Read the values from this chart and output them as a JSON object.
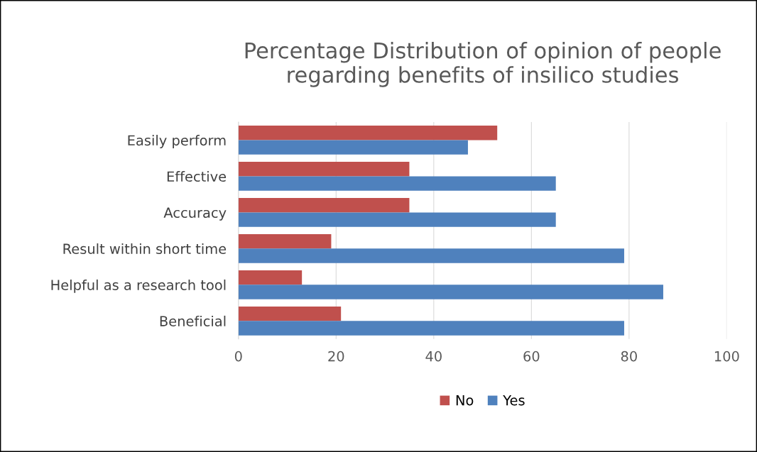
{
  "chart_data": {
    "type": "bar",
    "orientation": "horizontal",
    "title": "Percentage Distribution of opinion of people\nregarding benefits of insilico studies",
    "categories": [
      "Easily perform",
      "Effective",
      "Accuracy",
      "Result within short time",
      "Helpful as a research tool",
      "Beneficial"
    ],
    "series": [
      {
        "name": "No",
        "color": "#c0504d",
        "values": [
          53,
          35,
          35,
          19,
          13,
          21
        ]
      },
      {
        "name": "Yes",
        "color": "#4f81bd",
        "values": [
          47,
          65,
          65,
          79,
          87,
          79
        ]
      }
    ],
    "xlim": [
      0,
      100
    ],
    "xticks": [
      0,
      20,
      40,
      60,
      80,
      100
    ],
    "grid": "x",
    "legend": "bottom"
  }
}
